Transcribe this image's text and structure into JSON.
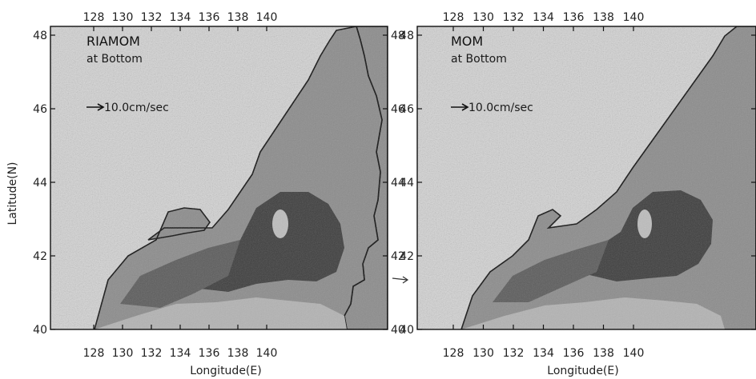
{
  "figure": {
    "y_axis_label": "Latitude(N)",
    "x_axis_label": "Longitude(E)"
  },
  "panels": [
    {
      "title": "RIAMOM",
      "subtitle": "at Bottom",
      "scale_label": "10.0cm/sec",
      "x_ticks": [
        "128",
        "130",
        "132",
        "134",
        "136",
        "138",
        "140"
      ],
      "y_ticks": [
        "40",
        "42",
        "44",
        "46",
        "48"
      ]
    },
    {
      "title": "MOM",
      "subtitle": "at Bottom",
      "scale_label": "10.0cm/sec",
      "x_ticks": [
        "128",
        "130",
        "132",
        "134",
        "136",
        "138",
        "140"
      ],
      "y_ticks": [
        "40",
        "42",
        "44",
        "46",
        "48"
      ]
    }
  ],
  "colors": {
    "background": "#ffffff",
    "field_light": "#d4d4d4",
    "field_mid": "#8c8c8c",
    "field_dark": "#3e3e3e",
    "coastline": "#111111"
  }
}
